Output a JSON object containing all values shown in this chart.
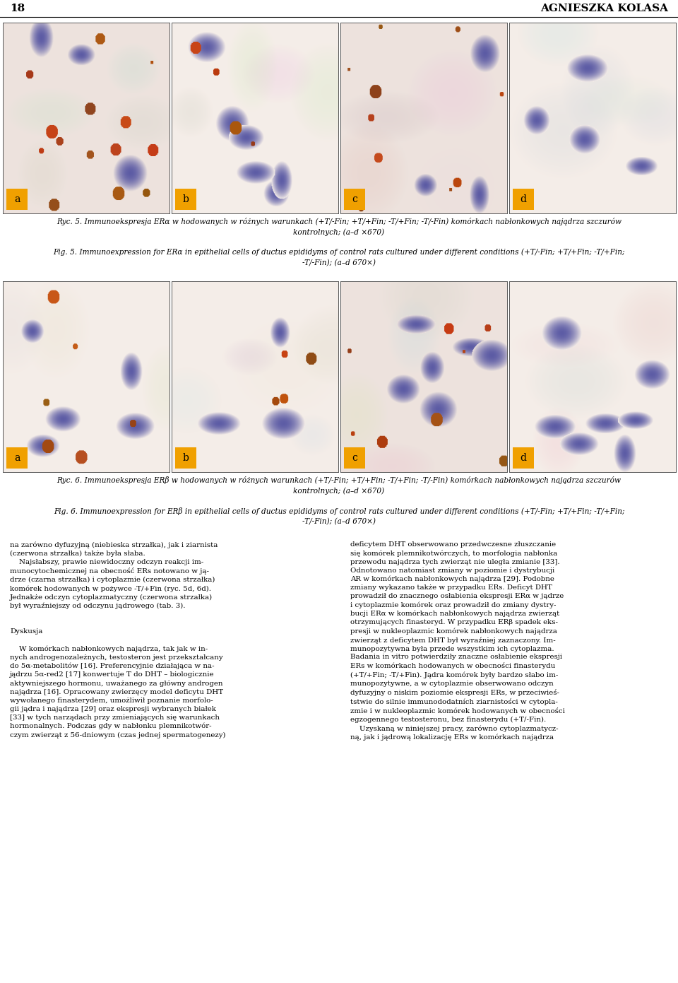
{
  "page_number": "18",
  "author": "AGNIESZKA KOLASA",
  "fig5_caption_pl": "Ryc. 5. Immunoekspresja ERα w hodowanych w różnych warunkach (+T/-Fin; +T/+Fin; -T/+Fin; -T/-Fin) komórkach nabłonkowych najądrza szczurów\nkontrolnych; (a–d ×670)",
  "fig5_caption_en": "Fig. 5. Immunoexpression for ERα in epithelial cells of ductus epididyms of control rats cultured under different conditions (+T/-Fin; +T/+Fin; -T/+Fin;\n-T/-Fin); (a–d 670×)",
  "fig6_caption_pl": "Ryc. 6. Immunoekspresja ERβ w hodowanych w różnych warunkach (+T/-Fin; +T/+Fin; -T/+Fin; -T/-Fin) komórkach nabłonkowych najądrza szczurów\nkontrolnych; (a–d ×670)",
  "fig6_caption_en": "Fig. 6. Immunoexpression for ERβ in epithelial cells of ductus epididyms of control rats cultured under different conditions (+T/-Fin; +T/+Fin; -T/+Fin;\n-T/-Fin); (a–d 670×)",
  "image_labels": [
    "a",
    "b",
    "c",
    "d"
  ],
  "label_bg": "#f0a000",
  "body_text_col1_lines": [
    "na zarówno dyfuzyjną (niebieska strzałka), jak i ziarnista",
    "(czerwona strzałka) także była słaba.",
    "    Najsłabszy, prawie niewidoczny odczyn reakcji im-",
    "munocytochemicznej na obecność ERs notowano w ją-",
    "drze (czarna strzałka) i cytoplazmie (czerwona strzałka)",
    "komórek hodowanych w pożywce -T/+Fin (ryc. 5d, 6d).",
    "Jednakże odczyn cytoplazmatyczny (czerwona strzałka)",
    "był wyraźniejszy od odczynu jądrowego (tab. 3).",
    "",
    "",
    "Dyskusja",
    "",
    "    W komórkach nabłonkowych najądrza, tak jak w in-",
    "nych androgenozależnych, testosteron jest przekształcany",
    "do 5α-metabolitów [16]. Preferencyjnie działająca w na-",
    "jądrzu 5α-red2 [17] konwertuje T do DHT – biologicznie",
    "aktywniejszego hormonu, uważanego za główny androgen",
    "najądrza [16]. Opracowany zwierzęcy model deficytu DHT",
    "wywołanego finasterydem, umożliwił poznanie morfolo-",
    "gii jądra i najądrza [29] oraz ekspresji wybranych białek",
    "[33] w tych narządach przy zmieniających się warunkach",
    "hormonalnych. Podczas gdy w nabłonku plemnikotwór-",
    "czym zwierząt z 56-dniowym (czas jednej spermatogenezy)"
  ],
  "body_text_col2_lines": [
    "deficytem DHT obserwowano przedwczesne złuszczanie",
    "się komórek plemnikotwórczych, to morfologia nabłonka",
    "przewodu najądrza tych zwierząt nie uległa zmianie [33].",
    "Odnotowano natomiast zmiany w poziomie i dystrybucji",
    "AR w komórkach nabłonkowych najądrza [29]. Podobne",
    "zmiany wykazano także w przypadku ERs. Deficyt DHT",
    "prowadził do znacznego osłabienia ekspresji ERα w jądrze",
    "i cytoplazmie komórek oraz prowadził do zmiany dystry-",
    "bucji ERα w komórkach nabłonkowych najądrza zwierząt",
    "otrzymujących finasteryd. W przypadku ERβ spadek eks-",
    "presji w nukleoplazmic komórek nabłonkowych najądrza",
    "zwierząt z deficytem DHT był wyraźniej zaznaczony. Im-",
    "munopozytywna była przede wszystkim ich cytoplazma.",
    "Badania in vitro potwierdziły znaczne osłabienie ekspresji",
    "ERs w komórkach hodowanych w obecności finasterydu",
    "(+T/+Fin; -T/+Fin). Jądra komórek były bardzo słabo im-",
    "munopozytywne, a w cytoplazmie obserwowano odczyn",
    "dyfuzyjny o niskim poziomie ekspresji ERs, w przeciwieś-",
    "tstwie do silnie immunododatních ziarnistości w cytopla-",
    "zmie i w nukleoplazmic komórek hodowanych w obecności",
    "egzogennego testosteronu, bez finasterydu (+T/-Fin).",
    "    Uzyskaną w niniejszej pracy, zarówno cytoplazmatycz-",
    "ną, jak i jądrową lokalizację ERs w komórkach najądrza"
  ]
}
